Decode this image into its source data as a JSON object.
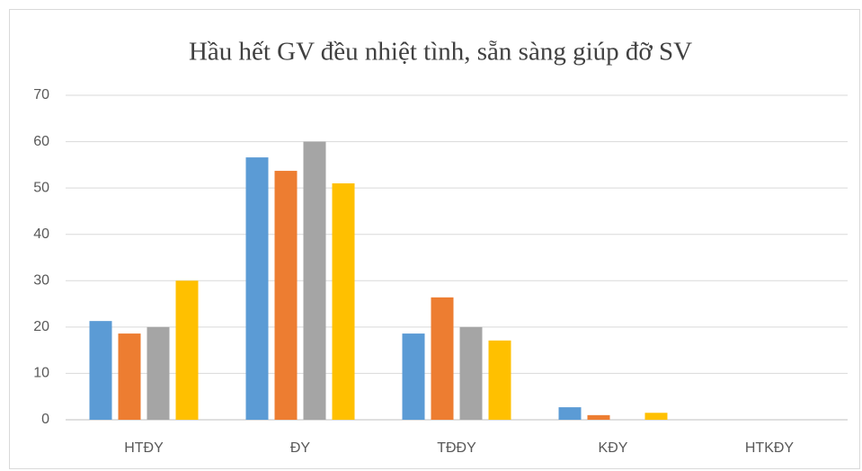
{
  "chart_data": {
    "type": "bar",
    "title": "Hầu hết GV đều nhiệt tình, sẵn sàng giúp đỡ SV",
    "categories": [
      "HTĐY",
      "ĐY",
      "TĐĐY",
      "KĐY",
      "HTKĐY"
    ],
    "series": [
      {
        "color": "#5b9bd5",
        "values": [
          21.3,
          56.6,
          18.6,
          2.7,
          0
        ]
      },
      {
        "color": "#ed7d31",
        "values": [
          18.6,
          53.7,
          26.4,
          1.0,
          0
        ]
      },
      {
        "color": "#a5a5a5",
        "values": [
          20,
          60,
          20,
          0,
          0
        ]
      },
      {
        "color": "#ffc000",
        "values": [
          30,
          51,
          17.1,
          1.5,
          0
        ]
      }
    ],
    "ylim": [
      0,
      70
    ],
    "yticks": [
      0,
      10,
      20,
      30,
      40,
      50,
      60,
      70
    ],
    "grid": true
  }
}
